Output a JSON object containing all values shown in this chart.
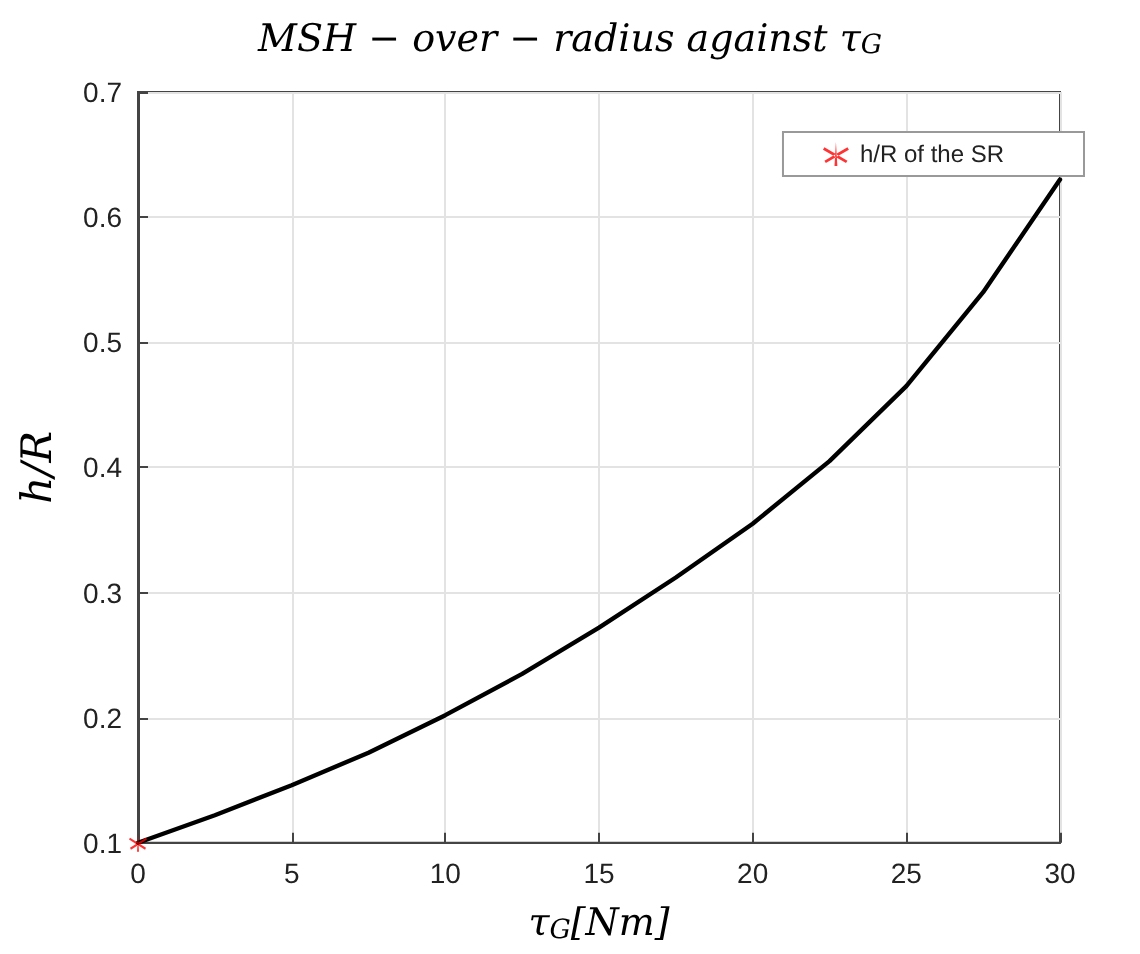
{
  "chart_data": {
    "type": "line",
    "title": "MSH − over − radius against τ$_{G}$",
    "xlabel": "τ$_{G}$[Nm]",
    "ylabel": "h/R",
    "xlim": [
      0,
      30
    ],
    "xticks": [
      0,
      5,
      10,
      15,
      20,
      25,
      30
    ],
    "ylim": [
      0.1,
      0.7
    ],
    "yticks": [
      0.1,
      0.2,
      0.3,
      0.4,
      0.5,
      0.6,
      0.7
    ],
    "grid": true,
    "legend": "top right",
    "series": [
      {
        "color": "#000000",
        "marker": "none",
        "line_style": "solid",
        "x": [
          0,
          2.5,
          5,
          7.5,
          10,
          12.5,
          15,
          17.5,
          20,
          22.5,
          25,
          27.5,
          30
        ],
        "values": [
          0.1,
          0.122,
          0.146,
          0.172,
          0.202,
          0.235,
          0.272,
          0.312,
          0.355,
          0.405,
          0.465,
          0.54,
          0.63
        ]
      },
      {
        "type": "scatter",
        "name": "h/R of the SR",
        "color": "#ff0000",
        "marker": "star",
        "x": [
          0
        ],
        "values": [
          0.1
        ]
      }
    ]
  }
}
